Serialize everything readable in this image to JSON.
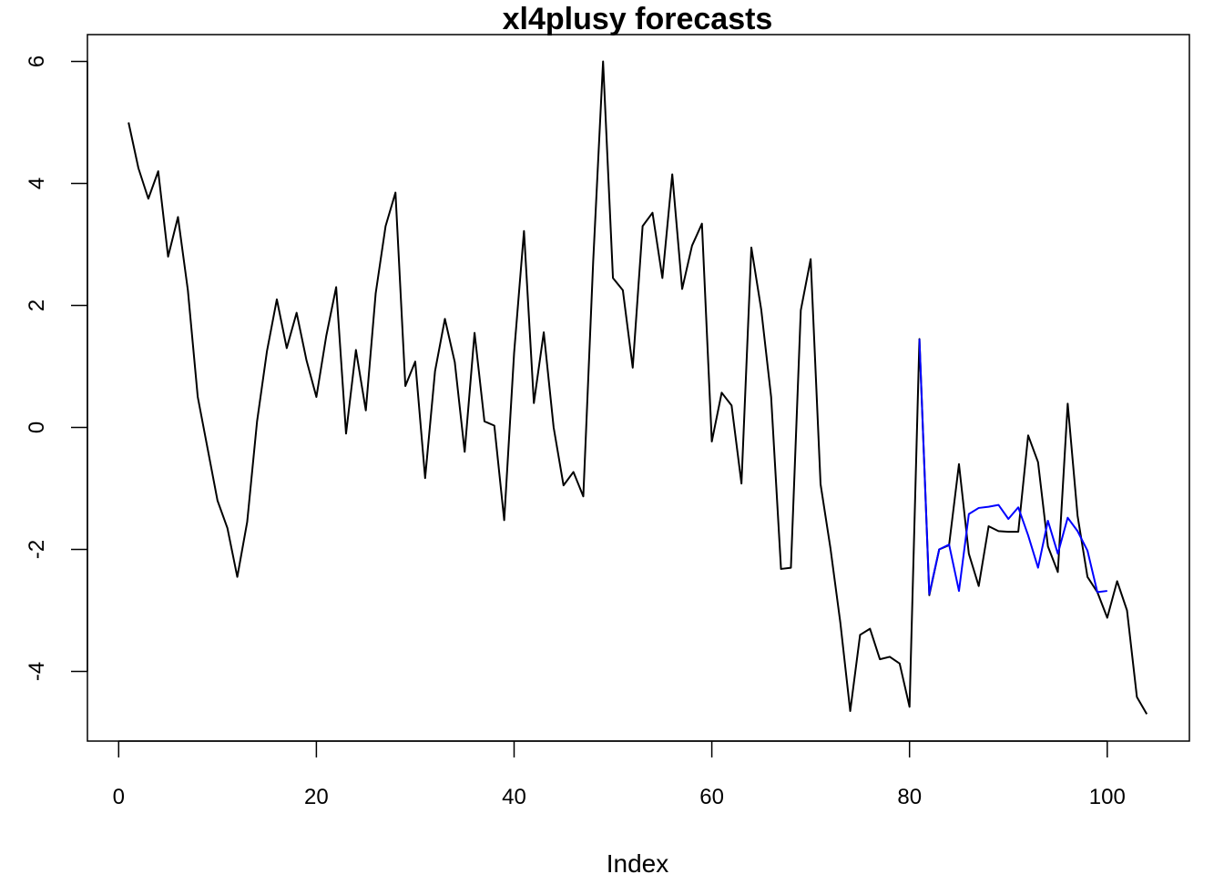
{
  "chart_data": {
    "type": "line",
    "title": "xl4plusy forecasts",
    "xlabel": "Index",
    "ylabel": "",
    "xlim": [
      1,
      104
    ],
    "ylim": [
      -4.7,
      6.0
    ],
    "xticks": [
      0,
      20,
      40,
      60,
      80,
      100
    ],
    "yticks": [
      -4,
      -2,
      0,
      2,
      4,
      6
    ],
    "xtick_labels": [
      "0",
      "20",
      "40",
      "60",
      "80",
      "100"
    ],
    "ytick_labels": [
      "-4",
      "-2",
      "0",
      "2",
      "4",
      "6"
    ],
    "grid": false,
    "series": [
      {
        "color": "#000000",
        "x": [
          1,
          2,
          3,
          4,
          5,
          6,
          7,
          8,
          9,
          10,
          11,
          12,
          13,
          14,
          15,
          16,
          17,
          18,
          19,
          20,
          21,
          22,
          23,
          24,
          25,
          26,
          27,
          28,
          29,
          30,
          31,
          32,
          33,
          34,
          35,
          36,
          37,
          38,
          39,
          40,
          41,
          42,
          43,
          44,
          45,
          46,
          47,
          48,
          49,
          50,
          51,
          52,
          53,
          54,
          55,
          56,
          57,
          58,
          59,
          60,
          61,
          62,
          63,
          64,
          65,
          66,
          67,
          68,
          69,
          70,
          71,
          72,
          73,
          74,
          75,
          76,
          77,
          78,
          79,
          80,
          81,
          82,
          83,
          84,
          85,
          86,
          87,
          88,
          89,
          90,
          91,
          92,
          93,
          94,
          95,
          96,
          97,
          98,
          99,
          100,
          101,
          102,
          103,
          104
        ],
        "y": [
          5.0,
          4.25,
          3.75,
          4.2,
          2.8,
          3.45,
          2.25,
          0.5,
          -0.35,
          -1.2,
          -1.65,
          -2.45,
          -1.55,
          0.1,
          1.25,
          2.1,
          1.3,
          1.88,
          1.1,
          0.5,
          1.5,
          2.3,
          -0.1,
          1.27,
          0.28,
          2.2,
          3.3,
          3.85,
          0.68,
          1.08,
          -0.83,
          0.92,
          1.78,
          1.07,
          -0.4,
          1.55,
          0.1,
          0.03,
          -1.52,
          1.22,
          3.22,
          0.4,
          1.56,
          0.0,
          -0.95,
          -0.73,
          -1.13,
          2.72,
          6.0,
          2.45,
          2.25,
          0.98,
          3.3,
          3.52,
          2.45,
          4.15,
          2.27,
          2.98,
          3.34,
          -0.23,
          0.57,
          0.36,
          -0.92,
          2.95,
          1.93,
          0.5,
          -2.32,
          -2.3,
          1.92,
          2.76,
          -0.93,
          -1.98,
          -3.2,
          -4.65,
          -3.4,
          -3.3,
          -3.8,
          -3.76,
          -3.87,
          -4.58,
          1.45,
          -2.75,
          -2.0,
          -1.93,
          -0.6,
          -2.07,
          -2.6,
          -1.62,
          -1.7,
          -1.71,
          -1.71,
          -0.13,
          -0.57,
          -1.95,
          -2.37,
          0.39,
          -1.45,
          -2.45,
          -2.7,
          -3.12,
          -2.52,
          -3.0,
          -4.42,
          -4.7
        ]
      },
      {
        "color": "#0000ff",
        "x": [
          81,
          82,
          83,
          84,
          85,
          86,
          87,
          88,
          89,
          90,
          91,
          92,
          93,
          94,
          95,
          96,
          97,
          98,
          99,
          100
        ],
        "y": [
          1.45,
          -2.73,
          -2.0,
          -1.92,
          -2.68,
          -1.42,
          -1.32,
          -1.3,
          -1.27,
          -1.5,
          -1.31,
          -1.77,
          -2.3,
          -1.53,
          -2.07,
          -1.48,
          -1.7,
          -2.02,
          -2.7,
          -2.68
        ]
      }
    ]
  }
}
